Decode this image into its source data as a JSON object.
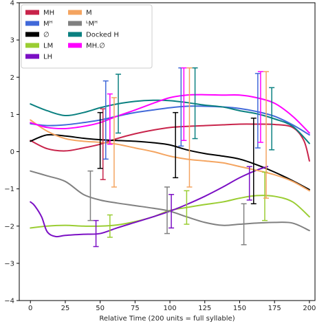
{
  "chart_data": {
    "type": "line",
    "xlabel": "Relative Time (200 units = full syllable)",
    "ylabel": "",
    "xlim": [
      -8,
      204
    ],
    "ylim": [
      -4,
      4
    ],
    "xticks": [
      0,
      25,
      50,
      75,
      100,
      125,
      150,
      175,
      200
    ],
    "yticks": [
      -4,
      -3,
      -2,
      -1,
      0,
      1,
      2,
      3,
      4
    ],
    "grid": false,
    "legend_placement": "top-left",
    "series": [
      {
        "name": "MH",
        "color": "#c8234a",
        "x": [
          0,
          12,
          25,
          38,
          50,
          62,
          75,
          88,
          100,
          112,
          125,
          138,
          150,
          162,
          175,
          188,
          196,
          200
        ],
        "y": [
          0.3,
          0.08,
          0.02,
          0.1,
          0.2,
          0.35,
          0.48,
          0.58,
          0.65,
          0.68,
          0.7,
          0.72,
          0.74,
          0.74,
          0.73,
          0.65,
          0.3,
          -0.25
        ],
        "errorbars": [
          {
            "x": 52,
            "y": 0.25,
            "low": -0.75,
            "high": 1.15
          }
        ]
      },
      {
        "name": "Mᴴ",
        "color": "#4169d9",
        "x": [
          0,
          12,
          25,
          38,
          50,
          62,
          75,
          88,
          100,
          112,
          125,
          138,
          150,
          162,
          175,
          188,
          200
        ],
        "y": [
          0.75,
          0.7,
          0.72,
          0.78,
          0.85,
          0.95,
          1.05,
          1.12,
          1.18,
          1.22,
          1.22,
          1.2,
          1.16,
          1.08,
          0.95,
          0.72,
          0.45
        ],
        "errorbars": [
          {
            "x": 54,
            "y": 0.85,
            "low": -0.2,
            "high": 1.9
          },
          {
            "x": 108,
            "y": 1.2,
            "low": 0.15,
            "high": 2.25
          },
          {
            "x": 163,
            "y": 1.1,
            "low": 0.1,
            "high": 2.1
          }
        ]
      },
      {
        "name": "∅",
        "color": "#000000",
        "x": [
          0,
          12,
          25,
          38,
          50,
          62,
          75,
          88,
          100,
          112,
          125,
          138,
          150,
          162,
          175,
          188,
          200
        ],
        "y": [
          0.28,
          0.45,
          0.42,
          0.36,
          0.32,
          0.3,
          0.28,
          0.24,
          0.18,
          0.05,
          -0.05,
          -0.12,
          -0.2,
          -0.35,
          -0.55,
          -0.78,
          -1.02
        ],
        "errorbars": [
          {
            "x": 50,
            "y": 0.3,
            "low": -0.45,
            "high": 1.05
          },
          {
            "x": 104,
            "y": 0.18,
            "low": -0.7,
            "high": 1.05
          },
          {
            "x": 160,
            "y": -0.25,
            "low": -1.4,
            "high": 0.9
          }
        ]
      },
      {
        "name": "LM",
        "color": "#9acd32",
        "x": [
          0,
          12,
          25,
          38,
          50,
          62,
          75,
          88,
          100,
          112,
          125,
          138,
          150,
          162,
          175,
          188,
          200
        ],
        "y": [
          -2.05,
          -2.0,
          -1.98,
          -2.0,
          -2.0,
          -1.97,
          -1.88,
          -1.75,
          -1.58,
          -1.5,
          -1.42,
          -1.35,
          -1.25,
          -1.18,
          -1.2,
          -1.35,
          -1.75
        ],
        "errorbars": [
          {
            "x": 57,
            "y": -2.0,
            "low": -2.3,
            "high": -1.7
          },
          {
            "x": 112,
            "y": -1.5,
            "low": -1.95,
            "high": -1.05
          },
          {
            "x": 168,
            "y": -1.2,
            "low": -1.85,
            "high": -0.55
          }
        ]
      },
      {
        "name": "LH",
        "color": "#7b0fc4",
        "x": [
          0,
          3,
          8,
          12,
          18,
          25,
          38,
          50,
          62,
          75,
          88,
          100,
          112,
          125,
          138,
          150,
          162,
          170
        ],
        "y": [
          -1.35,
          -1.45,
          -1.75,
          -2.15,
          -2.28,
          -2.25,
          -2.22,
          -2.2,
          -2.05,
          -1.9,
          -1.75,
          -1.6,
          -1.42,
          -1.2,
          -0.95,
          -0.7,
          -0.5,
          -0.4
        ],
        "errorbars": [
          {
            "x": 47,
            "y": -2.2,
            "low": -2.55,
            "high": -1.85
          },
          {
            "x": 101,
            "y": -1.6,
            "low": -2.05,
            "high": -1.15
          },
          {
            "x": 157,
            "y": -0.85,
            "low": -1.3,
            "high": -0.4
          }
        ]
      },
      {
        "name": "ᴸMᴴ",
        "color": "#808080",
        "x": [
          0,
          12,
          25,
          38,
          50,
          62,
          75,
          88,
          100,
          112,
          125,
          138,
          150,
          162,
          175,
          188,
          200
        ],
        "y": [
          -0.52,
          -0.65,
          -0.8,
          -1.15,
          -1.3,
          -1.38,
          -1.45,
          -1.52,
          -1.6,
          -1.75,
          -1.9,
          -1.98,
          -1.95,
          -1.92,
          -1.9,
          -1.92,
          -2.12
        ],
        "errorbars": [
          {
            "x": 43,
            "y": -1.18,
            "low": -1.85,
            "high": -0.52
          },
          {
            "x": 98,
            "y": -1.58,
            "low": -2.2,
            "high": -0.95
          },
          {
            "x": 153,
            "y": -1.95,
            "low": -2.5,
            "high": -1.4
          }
        ]
      },
      {
        "name": "M",
        "color": "#f4a460",
        "x": [
          0,
          12,
          25,
          38,
          50,
          62,
          75,
          88,
          100,
          112,
          125,
          138,
          150,
          162,
          175,
          188,
          200
        ],
        "y": [
          0.85,
          0.55,
          0.35,
          0.28,
          0.25,
          0.2,
          0.1,
          0.0,
          -0.12,
          -0.2,
          -0.25,
          -0.3,
          -0.4,
          -0.5,
          -0.62,
          -0.8,
          -1.05
        ],
        "errorbars": [
          {
            "x": 60,
            "y": 0.25,
            "low": -0.95,
            "high": 1.45
          },
          {
            "x": 114,
            "y": -0.1,
            "low": -0.95,
            "high": 2.25
          },
          {
            "x": 169,
            "y": -0.05,
            "low": -1.25,
            "high": 2.15
          }
        ]
      },
      {
        "name": "Docked H",
        "color": "#0a8080",
        "x": [
          0,
          12,
          25,
          38,
          50,
          62,
          75,
          88,
          100,
          112,
          125,
          138,
          150,
          162,
          175,
          188,
          200
        ],
        "y": [
          1.28,
          1.1,
          0.97,
          1.05,
          1.18,
          1.28,
          1.35,
          1.38,
          1.37,
          1.32,
          1.25,
          1.2,
          1.1,
          1.02,
          0.88,
          0.68,
          0.22
        ],
        "errorbars": [
          {
            "x": 63,
            "y": 1.3,
            "low": 0.5,
            "high": 2.08
          },
          {
            "x": 118,
            "y": 1.3,
            "low": 0.35,
            "high": 2.25
          },
          {
            "x": 173,
            "y": 0.88,
            "low": 0.05,
            "high": 1.72
          }
        ]
      },
      {
        "name": "MH.∅",
        "color": "#ff00ff",
        "x": [
          0,
          12,
          25,
          38,
          50,
          62,
          75,
          88,
          100,
          112,
          125,
          138,
          150,
          162,
          175,
          188,
          200
        ],
        "y": [
          0.78,
          0.65,
          0.62,
          0.68,
          0.78,
          0.95,
          1.12,
          1.3,
          1.45,
          1.52,
          1.53,
          1.52,
          1.52,
          1.45,
          1.3,
          0.95,
          0.5
        ],
        "errorbars": [
          {
            "x": 57,
            "y": 0.85,
            "low": 0.2,
            "high": 1.55
          },
          {
            "x": 110,
            "y": 1.5,
            "low": 0.3,
            "high": 2.25
          },
          {
            "x": 165,
            "y": 1.4,
            "low": 0.25,
            "high": 2.15
          }
        ]
      }
    ],
    "legend_order": [
      0,
      6,
      1,
      5,
      2,
      7,
      3,
      8,
      4
    ]
  }
}
